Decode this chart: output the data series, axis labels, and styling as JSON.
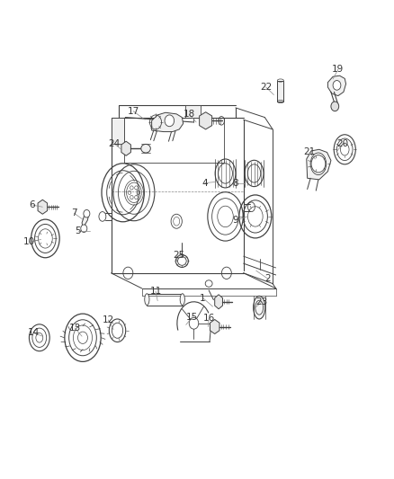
{
  "background_color": "#ffffff",
  "fig_width": 4.38,
  "fig_height": 5.33,
  "dpi": 100,
  "label_fontsize": 7.5,
  "label_color": "#333333",
  "line_color": "#404040",
  "parts_labels": {
    "1": [
      0.515,
      0.378,
      0.54,
      0.36
    ],
    "2": [
      0.68,
      0.418,
      0.65,
      0.435
    ],
    "4": [
      0.52,
      0.618,
      0.545,
      0.62
    ],
    "5": [
      0.198,
      0.518,
      0.228,
      0.518
    ],
    "6": [
      0.082,
      0.572,
      0.108,
      0.568
    ],
    "7": [
      0.188,
      0.555,
      0.21,
      0.542
    ],
    "8": [
      0.598,
      0.618,
      0.622,
      0.618
    ],
    "9": [
      0.598,
      0.54,
      0.628,
      0.548
    ],
    "10": [
      0.075,
      0.495,
      0.104,
      0.5
    ],
    "11": [
      0.395,
      0.392,
      0.4,
      0.372
    ],
    "12": [
      0.275,
      0.332,
      0.288,
      0.312
    ],
    "13": [
      0.19,
      0.315,
      0.208,
      0.298
    ],
    "14": [
      0.085,
      0.305,
      0.108,
      0.298
    ],
    "15": [
      0.488,
      0.338,
      0.472,
      0.322
    ],
    "16": [
      0.53,
      0.335,
      0.528,
      0.318
    ],
    "17": [
      0.338,
      0.768,
      0.368,
      0.75
    ],
    "18": [
      0.48,
      0.762,
      0.498,
      0.745
    ],
    "19": [
      0.858,
      0.855,
      0.845,
      0.835
    ],
    "20": [
      0.87,
      0.7,
      0.856,
      0.685
    ],
    "21": [
      0.785,
      0.682,
      0.8,
      0.668
    ],
    "22": [
      0.675,
      0.818,
      0.695,
      0.802
    ],
    "23": [
      0.665,
      0.37,
      0.648,
      0.358
    ],
    "24": [
      0.29,
      0.7,
      0.308,
      0.688
    ],
    "25": [
      0.455,
      0.468,
      0.445,
      0.452
    ]
  }
}
